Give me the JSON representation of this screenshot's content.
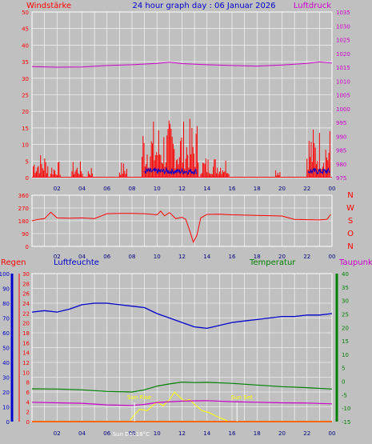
{
  "header": {
    "left_label": "Windstärke",
    "title": "24 hour graph day : 06 Januar 2026",
    "right_label": "Luftdruck"
  },
  "colors": {
    "background": "#c0c0c0",
    "grid": "#ffffff",
    "wind": "#ff0000",
    "gust_avg": "#0000cc",
    "calm": "#008000",
    "pressure": "#cc00cc",
    "direction": "#ff0000",
    "rain": "#ff0000",
    "humidity": "#0000cc",
    "temperature": "#008000",
    "dewpoint": "#cc00cc",
    "solar": "#ffff00",
    "axis_left": "#ff0000",
    "axis_blue": "#0000cc",
    "axis_green": "#008000",
    "axis_magenta": "#cc00cc"
  },
  "x_ticks": [
    "02",
    "04",
    "06",
    "08",
    "10",
    "12",
    "14",
    "16",
    "18",
    "20",
    "22",
    "00"
  ],
  "chart_data": [
    {
      "type": "line",
      "name": "wind_pressure",
      "left_axis": {
        "label": "Windstärke",
        "ylim": [
          0,
          50
        ],
        "ticks": [
          0,
          5,
          10,
          15,
          20,
          25,
          30,
          35,
          40,
          45,
          50
        ]
      },
      "right_axis": {
        "label": "Luftdruck",
        "ylim": [
          975,
          1035
        ],
        "ticks": [
          975,
          980,
          985,
          990,
          995,
          1000,
          1005,
          1010,
          1015,
          1020,
          1025,
          1030,
          1035
        ]
      },
      "series": [
        {
          "name": "Luftdruck",
          "axis": "right",
          "x": [
            0,
            2,
            4,
            6,
            8,
            10,
            11,
            12,
            14,
            16,
            18,
            20,
            22,
            23,
            24
          ],
          "y": [
            1015.2,
            1015.0,
            1015.1,
            1015.6,
            1015.9,
            1016.4,
            1016.8,
            1016.3,
            1015.9,
            1015.6,
            1015.4,
            1015.8,
            1016.4,
            1016.9,
            1016.5
          ]
        }
      ],
      "wind_segments": [
        {
          "x_start": 0.1,
          "x_end": 1.3,
          "max": 8
        },
        {
          "x_start": 1.5,
          "x_end": 2.3,
          "max": 5
        },
        {
          "x_start": 3.2,
          "x_end": 4.1,
          "max": 5
        },
        {
          "x_start": 4.5,
          "x_end": 4.9,
          "max": 4
        },
        {
          "x_start": 7.0,
          "x_end": 7.6,
          "max": 5
        },
        {
          "x_start": 8.8,
          "x_end": 13.3,
          "max": 18
        },
        {
          "x_start": 13.5,
          "x_end": 15.8,
          "max": 7
        },
        {
          "x_start": 19.5,
          "x_end": 19.9,
          "max": 4
        },
        {
          "x_start": 22.0,
          "x_end": 23.9,
          "max": 16
        }
      ]
    },
    {
      "type": "line",
      "name": "wind_direction",
      "left_axis": {
        "ylim": [
          0,
          360
        ],
        "ticks": [
          0,
          90,
          180,
          270,
          360
        ]
      },
      "right_labels": [
        "N",
        "W",
        "S",
        "O",
        "N"
      ],
      "series": [
        {
          "name": "direction",
          "x": [
            0,
            0.5,
            1,
            1.5,
            2,
            3,
            4,
            5,
            6,
            7,
            8,
            9,
            10,
            10.3,
            10.6,
            11,
            11.5,
            12,
            12.3,
            12.6,
            12.9,
            13.2,
            13.5,
            14,
            15,
            16,
            18,
            20,
            21,
            22,
            23,
            23.6,
            23.9
          ],
          "y": [
            180,
            190,
            195,
            240,
            200,
            198,
            200,
            196,
            230,
            232,
            232,
            230,
            222,
            248,
            215,
            238,
            195,
            205,
            190,
            115,
            30,
            80,
            200,
            225,
            226,
            222,
            218,
            214,
            190,
            188,
            186,
            190,
            225
          ]
        }
      ]
    },
    {
      "type": "line",
      "name": "humidity_temperature",
      "axes": {
        "rain": {
          "label": "Regen",
          "ylim": [
            0,
            30
          ],
          "ticks": [
            0,
            2,
            4,
            6,
            8,
            10,
            12,
            14,
            16,
            18,
            20,
            22,
            24,
            26,
            28,
            30
          ]
        },
        "humidity": {
          "label": "Luftfeuchte",
          "ylim": [
            0,
            100
          ],
          "ticks": [
            0,
            10,
            20,
            30,
            40,
            50,
            60,
            70,
            80,
            90,
            100
          ]
        },
        "temperature": {
          "label": "Temperatur",
          "ylim": [
            -15,
            40
          ],
          "ticks": [
            -15,
            -10,
            -5,
            0,
            5,
            10,
            15,
            20,
            25,
            30,
            35,
            40
          ]
        },
        "dewpoint": {
          "label": "Taupunkt"
        }
      },
      "series": [
        {
          "name": "Luftfeuchte",
          "x": [
            0,
            1,
            2,
            3,
            4,
            5,
            6,
            7,
            8,
            9,
            10,
            11,
            12,
            13,
            14,
            15,
            16,
            17,
            18,
            19,
            20,
            21,
            22,
            23,
            24
          ],
          "y": [
            74,
            75,
            74,
            76,
            79,
            80,
            80,
            79,
            78,
            77,
            73,
            70,
            67,
            64,
            63,
            65,
            67,
            68,
            69,
            70,
            71,
            71,
            72,
            72,
            73
          ]
        },
        {
          "name": "Temperatur",
          "x": [
            0,
            2,
            4,
            6,
            8,
            9,
            10,
            11,
            12,
            13,
            14,
            16,
            18,
            20,
            22,
            24
          ],
          "y": [
            -2.8,
            -2.9,
            -3.2,
            -3.8,
            -4.0,
            -3.2,
            -1.8,
            -1.0,
            -0.3,
            -0.5,
            -0.4,
            -0.8,
            -1.4,
            -2.0,
            -2.4,
            -2.9
          ]
        },
        {
          "name": "Taupunkt",
          "x": [
            0,
            2,
            4,
            6,
            8,
            9,
            10,
            12,
            14,
            16,
            18,
            20,
            22,
            24
          ],
          "y": [
            -7.8,
            -8.0,
            -8.2,
            -8.8,
            -9.0,
            -8.6,
            -7.9,
            -7.4,
            -7.2,
            -7.6,
            -7.8,
            -8.0,
            -8.1,
            -8.4
          ]
        },
        {
          "name": "Regen",
          "x": [
            0,
            24
          ],
          "y": [
            0,
            0
          ]
        },
        {
          "name": "Solar",
          "x": [
            7.9,
            8.6,
            9.2,
            10,
            10.5,
            11,
            11.4,
            11.8,
            12.2,
            12.6,
            13,
            13.6,
            14.2,
            14.8,
            15.3,
            15.6
          ],
          "y": [
            0.5,
            2.5,
            2.2,
            4.0,
            3.2,
            4.5,
            6.0,
            5.0,
            4.2,
            4.5,
            3.5,
            2.2,
            1.8,
            1.0,
            0.5,
            0.2
          ]
        }
      ],
      "sunrise": {
        "x": 8.2,
        "label": "Sun Rise"
      },
      "sunset": {
        "x": 16.4,
        "label": "Sun Set"
      },
      "bottom_markers": [
        "Sun Dec",
        "18°C"
      ]
    }
  ]
}
